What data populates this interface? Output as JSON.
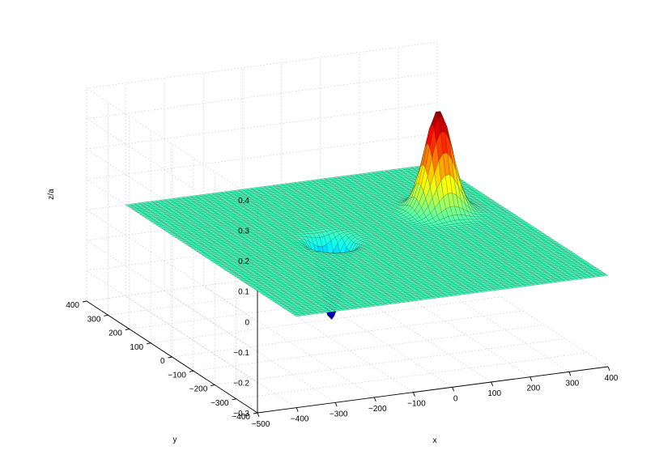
{
  "chart_data": {
    "type": "surface",
    "title": "",
    "xlabel": "x",
    "ylabel": "y",
    "zlabel": "z/a",
    "xlim": [
      -500,
      400
    ],
    "ylim": [
      -400,
      400
    ],
    "zlim": [
      -0.3,
      0.4
    ],
    "x_ticks": [
      "−500",
      "−400",
      "−300",
      "−200",
      "−100",
      "0",
      "100",
      "200",
      "300",
      "400"
    ],
    "x_tick_values": [
      -500,
      -400,
      -300,
      -200,
      -100,
      0,
      100,
      200,
      300,
      400
    ],
    "y_ticks": [
      "−400",
      "−300",
      "−200",
      "−100",
      "0",
      "100",
      "200",
      "300",
      "400"
    ],
    "y_tick_values": [
      -400,
      -300,
      -200,
      -100,
      0,
      100,
      200,
      300,
      400
    ],
    "z_ticks": [
      "−0.3",
      "−0.2",
      "−0.1",
      "0",
      "0.1",
      "0.2",
      "0.3",
      "0.4"
    ],
    "z_tick_values": [
      -0.3,
      -0.2,
      -0.1,
      0,
      0.1,
      0.2,
      0.3,
      0.4
    ],
    "grid": true,
    "colormap": "jet",
    "surface": {
      "domain_x": [
        -400,
        400
      ],
      "domain_y": [
        -400,
        400
      ],
      "baseline": 0,
      "features": [
        {
          "kind": "peak",
          "x": 250,
          "y": 120,
          "amplitude": 0.33,
          "width": 32
        },
        {
          "kind": "pit",
          "x": -80,
          "y": 20,
          "amplitude": -0.26,
          "width": 24
        }
      ]
    }
  }
}
